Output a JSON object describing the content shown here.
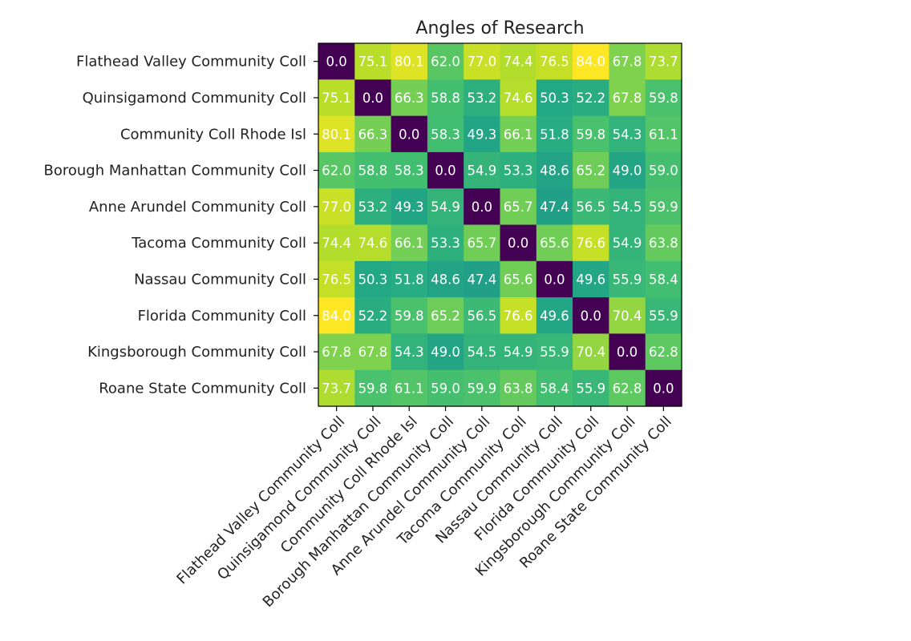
{
  "chart_data": {
    "type": "heatmap",
    "title": "Angles of Research",
    "xlabel": "",
    "ylabel": "",
    "colormap": "viridis",
    "value_range": [
      0,
      84.0
    ],
    "annotation_color": "#ffffff",
    "x_tick_rotation_deg": 45,
    "rows": [
      "Flathead Valley Community Coll",
      "Quinsigamond Community Coll",
      "Community Coll Rhode Isl",
      "Borough Manhattan Community Coll",
      "Anne Arundel Community Coll",
      "Tacoma Community Coll",
      "Nassau Community Coll",
      "Florida Community Coll",
      "Kingsborough Community Coll",
      "Roane State Community Coll"
    ],
    "columns": [
      "Flathead Valley Community Coll",
      "Quinsigamond Community Coll",
      "Community Coll Rhode Isl",
      "Borough Manhattan Community Coll",
      "Anne Arundel Community Coll",
      "Tacoma Community Coll",
      "Nassau Community Coll",
      "Florida Community Coll",
      "Kingsborough Community Coll",
      "Roane State Community Coll"
    ],
    "values": [
      [
        0.0,
        75.1,
        80.1,
        62.0,
        77.0,
        74.4,
        76.5,
        84.0,
        67.8,
        73.7
      ],
      [
        75.1,
        0.0,
        66.3,
        58.8,
        53.2,
        74.6,
        50.3,
        52.2,
        67.8,
        59.8
      ],
      [
        80.1,
        66.3,
        0.0,
        58.3,
        49.3,
        66.1,
        51.8,
        59.8,
        54.3,
        61.1
      ],
      [
        62.0,
        58.8,
        58.3,
        0.0,
        54.9,
        53.3,
        48.6,
        65.2,
        49.0,
        59.0
      ],
      [
        77.0,
        53.2,
        49.3,
        54.9,
        0.0,
        65.7,
        47.4,
        56.5,
        54.5,
        59.9
      ],
      [
        74.4,
        74.6,
        66.1,
        53.3,
        65.7,
        0.0,
        65.6,
        76.6,
        54.9,
        63.8
      ],
      [
        76.5,
        50.3,
        51.8,
        48.6,
        47.4,
        65.6,
        0.0,
        49.6,
        55.9,
        58.4
      ],
      [
        84.0,
        52.2,
        59.8,
        65.2,
        56.5,
        76.6,
        49.6,
        0.0,
        70.4,
        55.9
      ],
      [
        67.8,
        67.8,
        54.3,
        49.0,
        54.5,
        54.9,
        55.9,
        70.4,
        0.0,
        62.8
      ],
      [
        73.7,
        59.8,
        61.1,
        59.0,
        59.9,
        63.8,
        58.4,
        55.9,
        62.8,
        0.0
      ]
    ]
  }
}
